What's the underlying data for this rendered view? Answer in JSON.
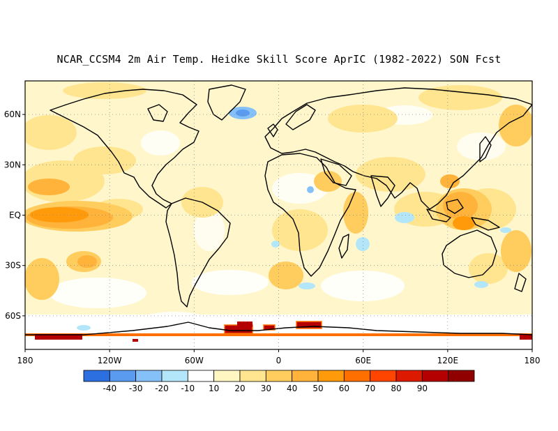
{
  "title": "NCAR_CCSM4 2m Air Temp. Heidke Skill Score AprIC (1982-2022) SON Fcst",
  "x_axis": {
    "ticks": [
      {
        "lon": -180,
        "label": "180"
      },
      {
        "lon": -120,
        "label": "120W"
      },
      {
        "lon": -60,
        "label": "60W"
      },
      {
        "lon": 0,
        "label": "0"
      },
      {
        "lon": 60,
        "label": "60E"
      },
      {
        "lon": 120,
        "label": "120E"
      },
      {
        "lon": 180,
        "label": "180"
      }
    ]
  },
  "y_axis": {
    "ticks": [
      {
        "lat": 60,
        "label": "60N"
      },
      {
        "lat": 30,
        "label": "30N"
      },
      {
        "lat": 0,
        "label": "EQ"
      },
      {
        "lat": -30,
        "label": "30S"
      },
      {
        "lat": -60,
        "label": "60S"
      }
    ]
  },
  "lon_range": [
    -180,
    180
  ],
  "lat_range": [
    -80,
    80
  ],
  "grid": true,
  "colorbar": {
    "colors": [
      "#2b6fe0",
      "#5a9bf0",
      "#86c0f8",
      "#b4e6fa",
      "#ffffff",
      "#fff6c2",
      "#ffe590",
      "#ffcc5e",
      "#ffb33a",
      "#ff9a0a",
      "#ff6f00",
      "#ff4500",
      "#dd1a00",
      "#b40000",
      "#900000"
    ],
    "labels": [
      "-40",
      "-30",
      "-20",
      "-10",
      "10",
      "20",
      "30",
      "40",
      "50",
      "60",
      "70",
      "80",
      "90"
    ]
  }
}
